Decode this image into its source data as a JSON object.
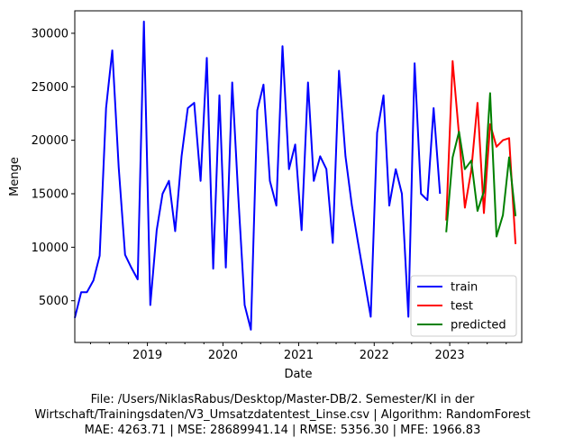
{
  "chart_data": {
    "type": "line",
    "xlabel": "Date",
    "ylabel": "Menge",
    "xlim": [
      "2018-01-15",
      "2023-12-15"
    ],
    "ylim": [
      1100,
      32100
    ],
    "x_ticks": [
      "2019",
      "2020",
      "2021",
      "2022",
      "2023"
    ],
    "y_ticks": [
      "5000",
      "10000",
      "15000",
      "20000",
      "25000",
      "30000"
    ],
    "legend_position": "lower right",
    "grid": false,
    "series": [
      {
        "name": "train",
        "color": "#0000ff",
        "points": [
          [
            "2018-01-15",
            3400
          ],
          [
            "2018-02-15",
            5800
          ],
          [
            "2018-03-15",
            5800
          ],
          [
            "2018-04-15",
            6900
          ],
          [
            "2018-05-15",
            9200
          ],
          [
            "2018-06-15",
            23000
          ],
          [
            "2018-07-15",
            28400
          ],
          [
            "2018-08-15",
            17500
          ],
          [
            "2018-09-15",
            9300
          ],
          [
            "2018-10-15",
            8100
          ],
          [
            "2018-11-15",
            7000
          ],
          [
            "2018-12-15",
            31100
          ],
          [
            "2019-01-15",
            4600
          ],
          [
            "2019-02-15",
            11600
          ],
          [
            "2019-03-15",
            15000
          ],
          [
            "2019-04-15",
            16200
          ],
          [
            "2019-05-15",
            11500
          ],
          [
            "2019-06-15",
            18500
          ],
          [
            "2019-07-15",
            23000
          ],
          [
            "2019-08-15",
            23500
          ],
          [
            "2019-09-15",
            16200
          ],
          [
            "2019-10-15",
            27700
          ],
          [
            "2019-11-15",
            8000
          ],
          [
            "2019-12-15",
            24200
          ],
          [
            "2020-01-15",
            8100
          ],
          [
            "2020-02-15",
            25400
          ],
          [
            "2020-03-15",
            14800
          ],
          [
            "2020-04-15",
            4600
          ],
          [
            "2020-05-15",
            2300
          ],
          [
            "2020-06-15",
            22800
          ],
          [
            "2020-07-15",
            25200
          ],
          [
            "2020-08-15",
            16200
          ],
          [
            "2020-09-15",
            13900
          ],
          [
            "2020-10-15",
            28800
          ],
          [
            "2020-11-15",
            17300
          ],
          [
            "2020-12-15",
            19600
          ],
          [
            "2021-01-15",
            11600
          ],
          [
            "2021-02-15",
            25400
          ],
          [
            "2021-03-15",
            16200
          ],
          [
            "2021-04-15",
            18500
          ],
          [
            "2021-05-15",
            17300
          ],
          [
            "2021-06-15",
            10400
          ],
          [
            "2021-07-15",
            26500
          ],
          [
            "2021-08-15",
            18500
          ],
          [
            "2021-09-15",
            13900
          ],
          [
            "2021-10-15",
            10400
          ],
          [
            "2021-11-15",
            6900
          ],
          [
            "2021-12-15",
            3500
          ],
          [
            "2022-01-15",
            20700
          ],
          [
            "2022-02-15",
            24200
          ],
          [
            "2022-03-15",
            13900
          ],
          [
            "2022-04-15",
            17300
          ],
          [
            "2022-05-15",
            15000
          ],
          [
            "2022-06-15",
            3500
          ],
          [
            "2022-07-15",
            27200
          ],
          [
            "2022-08-15",
            15000
          ],
          [
            "2022-09-15",
            14400
          ],
          [
            "2022-10-15",
            23000
          ],
          [
            "2022-11-15",
            15000
          ]
        ]
      },
      {
        "name": "test",
        "color": "#ff0000",
        "points": [
          [
            "2022-12-15",
            12500
          ],
          [
            "2023-01-15",
            27400
          ],
          [
            "2023-02-15",
            20500
          ],
          [
            "2023-03-15",
            13700
          ],
          [
            "2023-04-15",
            17200
          ],
          [
            "2023-05-15",
            23500
          ],
          [
            "2023-06-15",
            13200
          ],
          [
            "2023-07-15",
            21500
          ],
          [
            "2023-08-15",
            19400
          ],
          [
            "2023-09-15",
            20000
          ],
          [
            "2023-10-15",
            20200
          ],
          [
            "2023-11-15",
            10300
          ]
        ]
      },
      {
        "name": "predicted",
        "color": "#008000",
        "points": [
          [
            "2022-12-15",
            11400
          ],
          [
            "2023-01-15",
            18400
          ],
          [
            "2023-02-15",
            20800
          ],
          [
            "2023-03-15",
            17300
          ],
          [
            "2023-04-15",
            18100
          ],
          [
            "2023-05-15",
            13400
          ],
          [
            "2023-06-15",
            15200
          ],
          [
            "2023-07-15",
            24400
          ],
          [
            "2023-08-15",
            11000
          ],
          [
            "2023-09-15",
            13000
          ],
          [
            "2023-10-15",
            18400
          ],
          [
            "2023-11-15",
            12900
          ]
        ]
      }
    ]
  },
  "footer": {
    "line1": "File: /Users/NiklasRabus/Desktop/Master-DB/2. Semester/KI in der",
    "line2": "Wirtschaft/Trainingsdaten/V3_Umsatzdatentest_Linse.csv | Algorithm: RandomForest",
    "line3": "MAE: 4263.71 | MSE: 28689941.14 | RMSE: 5356.30 | MFE: 1966.83"
  }
}
